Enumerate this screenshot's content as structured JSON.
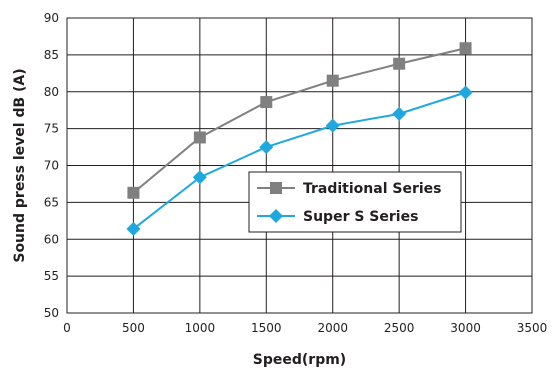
{
  "chart_data": {
    "type": "line",
    "title": "",
    "xlabel": "Speed(rpm)",
    "ylabel": "Sound press level dB (A)",
    "xlim": [
      0,
      3500
    ],
    "ylim": [
      50,
      90
    ],
    "xticks": [
      0,
      500,
      1000,
      1500,
      2000,
      2500,
      3000,
      3500
    ],
    "yticks": [
      50,
      55,
      60,
      65,
      70,
      75,
      80,
      85,
      90
    ],
    "grid": true,
    "legend_position": "center-right",
    "series": [
      {
        "name": "Traditional Series",
        "color": "#808080",
        "marker": "square",
        "x": [
          500,
          1000,
          1500,
          2000,
          2500,
          3000
        ],
        "y": [
          66.3,
          73.8,
          78.6,
          81.5,
          83.8,
          85.9
        ]
      },
      {
        "name": "Super S Series",
        "color": "#1fa8e0",
        "marker": "diamond",
        "x": [
          500,
          1000,
          1500,
          2000,
          2500,
          3000
        ],
        "y": [
          61.4,
          68.4,
          72.5,
          75.4,
          77.0,
          79.9
        ]
      }
    ]
  }
}
